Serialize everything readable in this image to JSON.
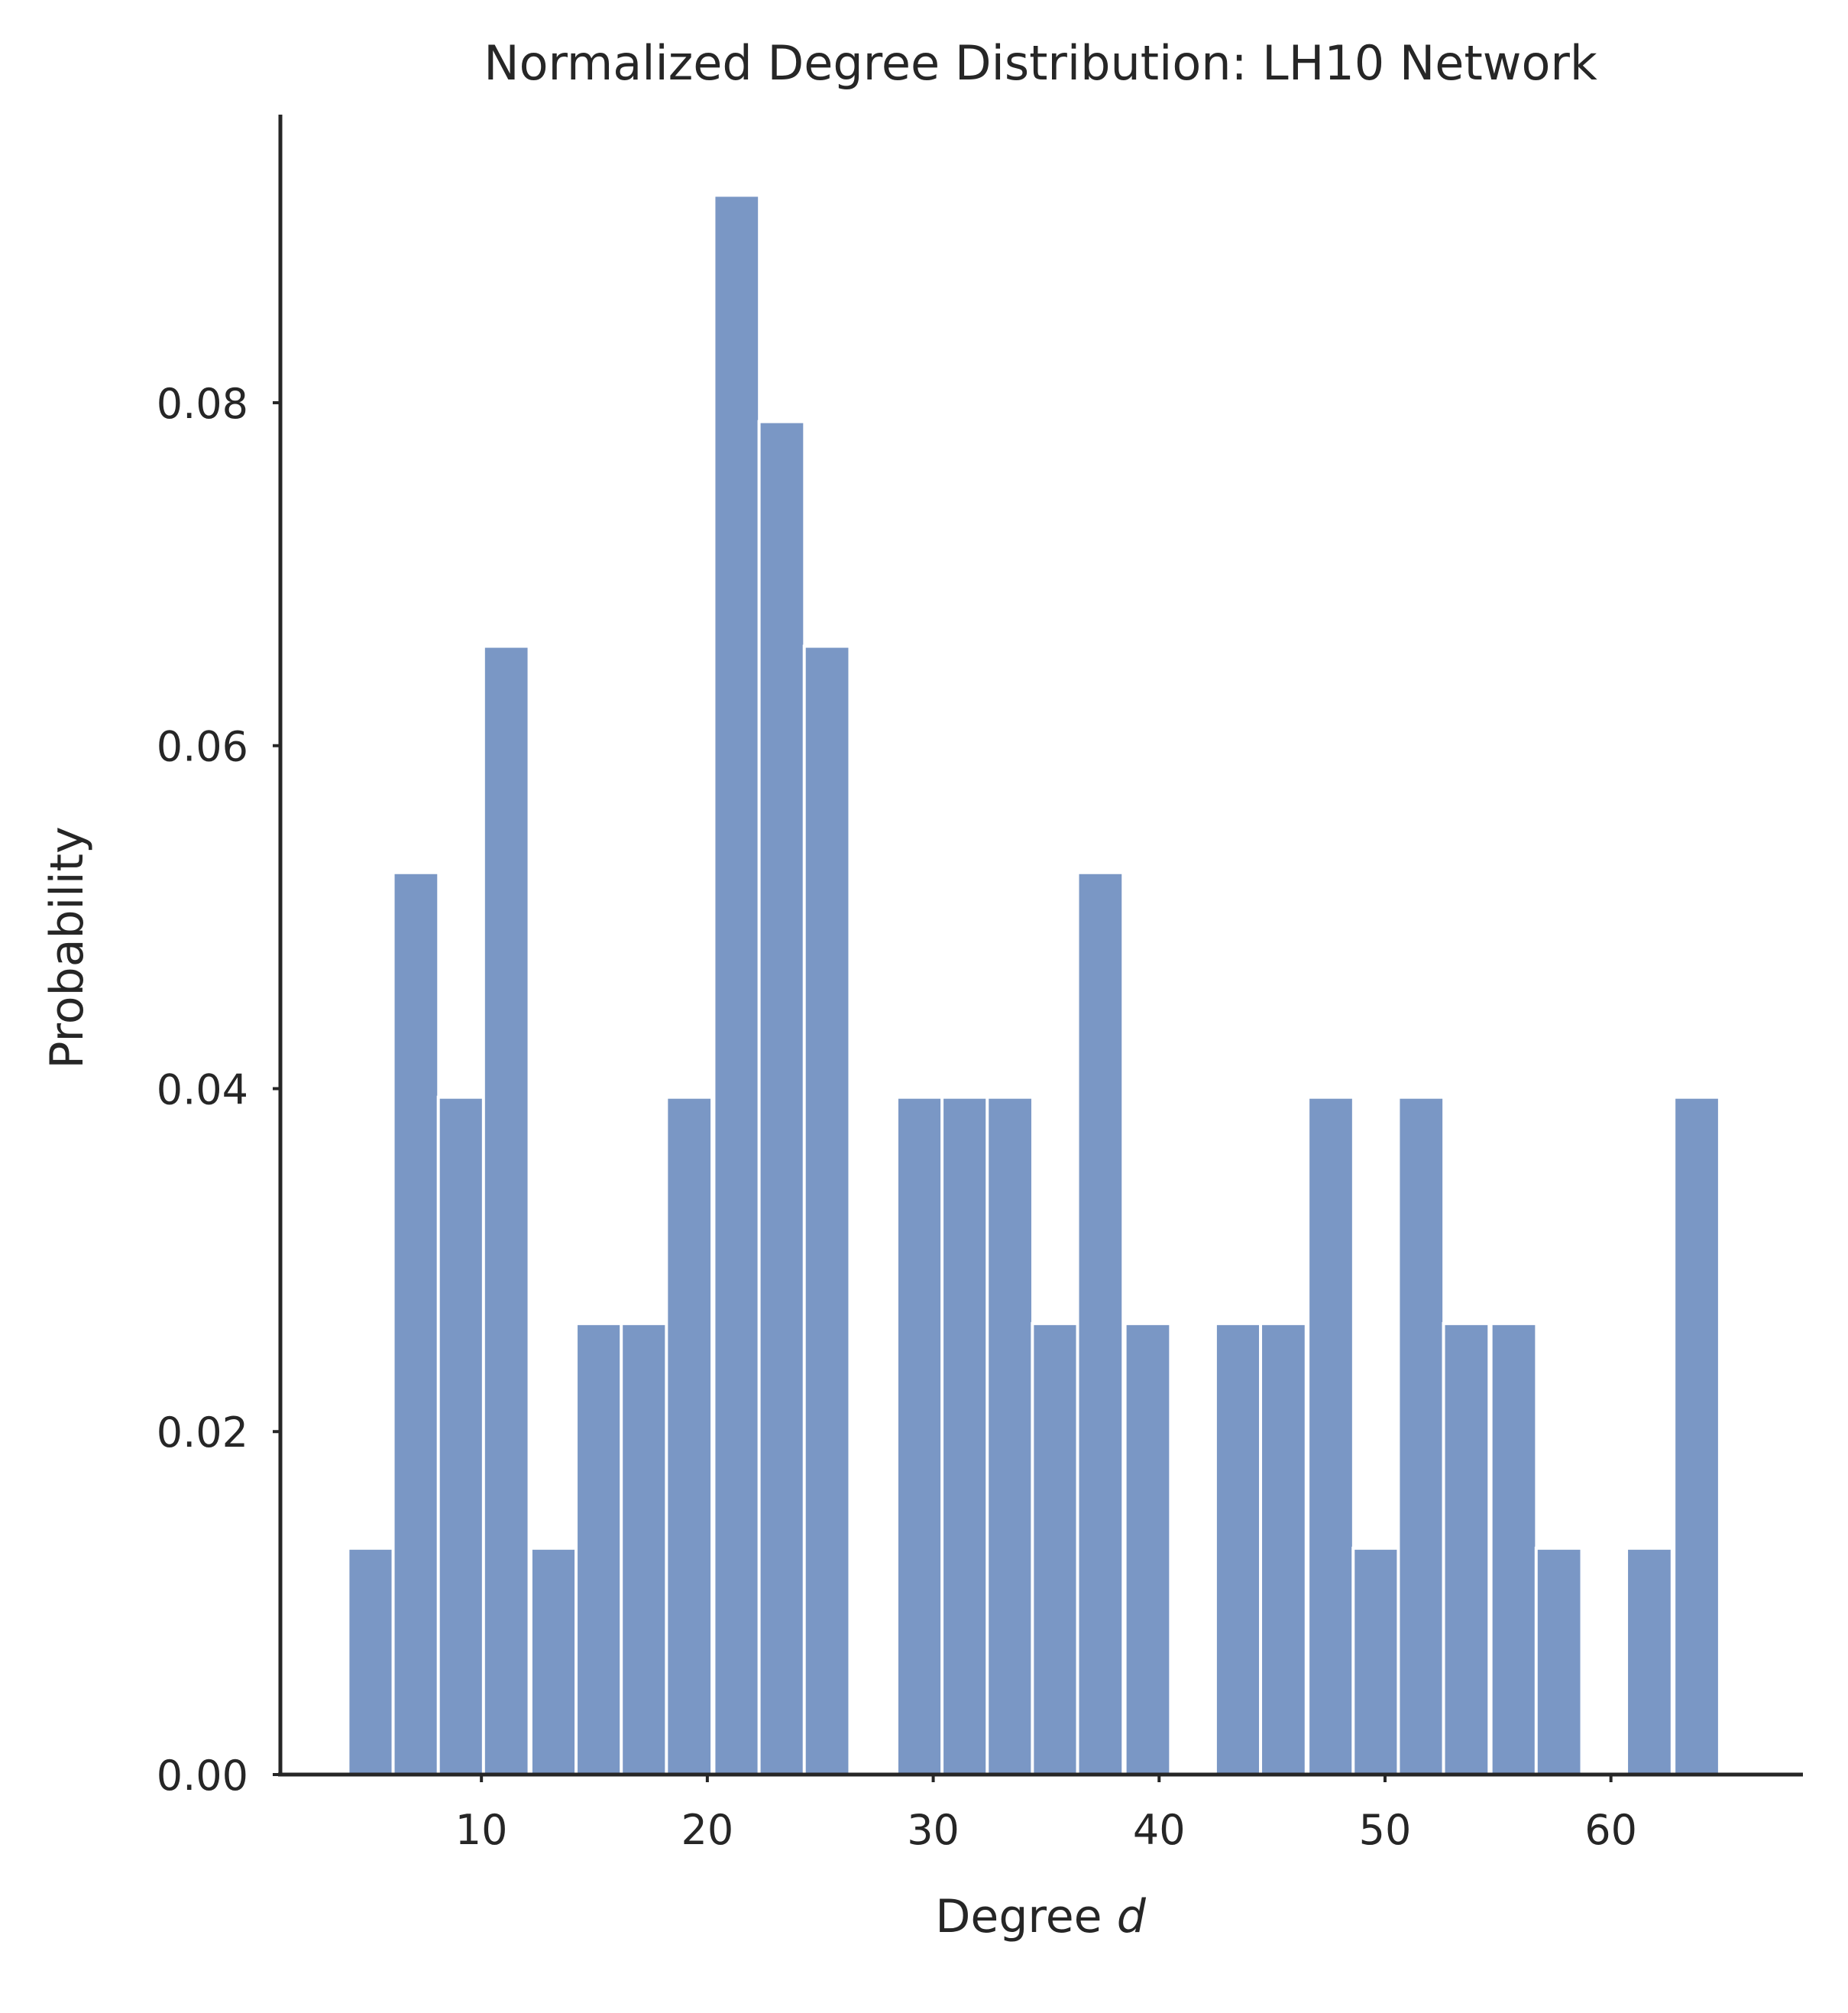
{
  "chart_data": {
    "type": "bar",
    "title": "Normalized Degree Distribution: LH10 Network",
    "xlabel_prefix": "Degree",
    "xlabel_var": "d",
    "ylabel": "Probability",
    "bin_width": 2.02,
    "bins": [
      {
        "x": 5.1,
        "value": 0.0132
      },
      {
        "x": 7.1,
        "value": 0.0526
      },
      {
        "x": 9.1,
        "value": 0.0395
      },
      {
        "x": 11.1,
        "value": 0.0658
      },
      {
        "x": 13.2,
        "value": 0.0132
      },
      {
        "x": 15.2,
        "value": 0.0263
      },
      {
        "x": 17.2,
        "value": 0.0263
      },
      {
        "x": 19.2,
        "value": 0.0395
      },
      {
        "x": 21.3,
        "value": 0.0921
      },
      {
        "x": 23.3,
        "value": 0.0789
      },
      {
        "x": 25.3,
        "value": 0.0658
      },
      {
        "x": 27.3,
        "value": 0.0
      },
      {
        "x": 29.4,
        "value": 0.0395
      },
      {
        "x": 31.4,
        "value": 0.0395
      },
      {
        "x": 33.4,
        "value": 0.0395
      },
      {
        "x": 35.4,
        "value": 0.0263
      },
      {
        "x": 37.4,
        "value": 0.0526
      },
      {
        "x": 39.5,
        "value": 0.0263
      },
      {
        "x": 41.5,
        "value": 0.0
      },
      {
        "x": 43.5,
        "value": 0.0263
      },
      {
        "x": 45.5,
        "value": 0.0263
      },
      {
        "x": 47.6,
        "value": 0.0395
      },
      {
        "x": 49.6,
        "value": 0.0132
      },
      {
        "x": 51.6,
        "value": 0.0395
      },
      {
        "x": 53.6,
        "value": 0.0263
      },
      {
        "x": 55.7,
        "value": 0.0263
      },
      {
        "x": 57.7,
        "value": 0.0132
      },
      {
        "x": 59.7,
        "value": 0.0
      },
      {
        "x": 61.7,
        "value": 0.0132
      },
      {
        "x": 63.8,
        "value": 0.0395
      }
    ],
    "xlim": [
      1.1,
      68.5
    ],
    "ylim": [
      0,
      0.0968
    ],
    "xticks": [
      10,
      20,
      30,
      40,
      50,
      60
    ],
    "xtick_labels": [
      "10",
      "20",
      "30",
      "40",
      "50",
      "60"
    ],
    "yticks": [
      0,
      0.02,
      0.04,
      0.06,
      0.08
    ],
    "ytick_labels": [
      "0.00",
      "0.02",
      "0.04",
      "0.06",
      "0.08"
    ],
    "grid": false,
    "legend": "none",
    "bar_color": "#7a97c5",
    "edge_color": "#ffffff"
  }
}
